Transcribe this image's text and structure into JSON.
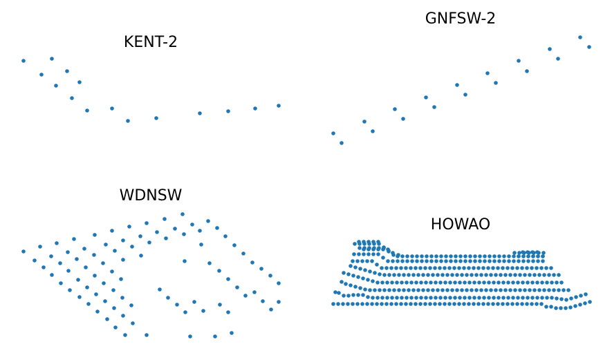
{
  "chart_data": [
    {
      "type": "scatter",
      "title": "KENT-2",
      "color": "#1f77b4",
      "axes_visible": false,
      "xlim": [
        20,
        420
      ],
      "ylim": [
        190,
        70
      ],
      "x": [
        34,
        75,
        60,
        97,
        81,
        115,
        104,
        126,
        162,
        185,
        226,
        289,
        330,
        369,
        403
      ],
      "y": [
        88,
        85,
        108,
        103,
        124,
        119,
        142,
        160,
        157,
        175,
        171,
        164,
        161,
        157,
        153
      ]
    },
    {
      "type": "scatter",
      "title": "GNFSW-2",
      "color": "#1f77b4",
      "axes_visible": false,
      "xlim": [
        470,
        865
      ],
      "ylim": [
        215,
        45
      ],
      "x": [
        482,
        494,
        527,
        539,
        571,
        583,
        616,
        628,
        661,
        673,
        705,
        717,
        750,
        762,
        795,
        807,
        839,
        852
      ],
      "y": [
        193,
        207,
        176,
        190,
        158,
        172,
        141,
        155,
        123,
        137,
        106,
        120,
        88,
        103,
        71,
        85,
        54,
        68
      ]
    },
    {
      "type": "scatter",
      "title": "WDNSW",
      "color": "#1f77b4",
      "axes_visible": false,
      "xlim": [
        20,
        420
      ],
      "ylim": [
        495,
        300
      ],
      "x": [
        34,
        58,
        82,
        107,
        137,
        162,
        187,
        212,
        238,
        264,
        50,
        74,
        98,
        122,
        153,
        178,
        203,
        227,
        253,
        278,
        301,
        63,
        87,
        111,
        136,
        166,
        191,
        216,
        240,
        266,
        289,
        314,
        75,
        99,
        124,
        149,
        178,
        204,
        267,
        291,
        326,
        88,
        113,
        137,
        162,
        303,
        339,
        101,
        126,
        150,
        175,
        317,
        352,
        115,
        139,
        164,
        330,
        365,
        128,
        152,
        177,
        231,
        343,
        378,
        141,
        165,
        190,
        243,
        355,
        391,
        155,
        178,
        256,
        281,
        318,
        368,
        403,
        167,
        192,
        268,
        294,
        330,
        380,
        181,
        212,
        275,
        311,
        335,
        392,
        403
      ],
      "y": [
        364,
        357,
        352,
        346,
        340,
        334,
        328,
        323,
        317,
        310,
        377,
        371,
        365,
        360,
        354,
        348,
        342,
        336,
        331,
        325,
        320,
        387,
        381,
        375,
        369,
        363,
        357,
        351,
        345,
        339,
        334,
        330,
        398,
        392,
        387,
        381,
        376,
        370,
        378,
        354,
        342,
        410,
        405,
        399,
        393,
        381,
        355,
        420,
        416,
        410,
        404,
        392,
        367,
        430,
        426,
        420,
        404,
        380,
        440,
        436,
        431,
        419,
        416,
        389,
        451,
        446,
        442,
        431,
        428,
        399,
        462,
        457,
        441,
        437,
        441,
        423,
        410,
        474,
        468,
        452,
        450,
        452,
        436,
        485,
        485,
        487,
        487,
        482,
        448,
        437
      ]
    },
    {
      "type": "scatter",
      "title": "HOWAO",
      "color": "#1f77b4",
      "axes_visible": false,
      "xlim": [
        470,
        865
      ],
      "ylim": [
        455,
        345
      ],
      "x": [
        482,
        489,
        496,
        503,
        510,
        517,
        524,
        531,
        538,
        545,
        552,
        559,
        566,
        573,
        580,
        587,
        594,
        601,
        608,
        615,
        622,
        629,
        636,
        643,
        650,
        657,
        664,
        671,
        678,
        685,
        692,
        699,
        706,
        713,
        720,
        727,
        734,
        741,
        748,
        755,
        762,
        769,
        776,
        783,
        790,
        797,
        804,
        811,
        818,
        825,
        832,
        839,
        846,
        853,
        485,
        490,
        497,
        504,
        511,
        518,
        525,
        532,
        539,
        546,
        553,
        560,
        567,
        574,
        581,
        588,
        595,
        602,
        609,
        616,
        623,
        630,
        637,
        644,
        651,
        658,
        665,
        672,
        679,
        686,
        693,
        700,
        707,
        714,
        721,
        728,
        735,
        742,
        749,
        756,
        763,
        770,
        777,
        784,
        791,
        798,
        805,
        812,
        819,
        826,
        833,
        840,
        847,
        494,
        500,
        507,
        514,
        521,
        528,
        535,
        542,
        549,
        556,
        563,
        570,
        577,
        584,
        591,
        598,
        605,
        612,
        619,
        626,
        633,
        640,
        647,
        654,
        661,
        668,
        675,
        682,
        689,
        696,
        703,
        710,
        717,
        724,
        731,
        738,
        745,
        752,
        759,
        766,
        773,
        780,
        787,
        794,
        801,
        808,
        815,
        822,
        497,
        504,
        511,
        518,
        525,
        532,
        539,
        546,
        553,
        560,
        567,
        574,
        581,
        588,
        595,
        602,
        609,
        616,
        623,
        630,
        637,
        644,
        651,
        658,
        665,
        672,
        679,
        686,
        693,
        700,
        707,
        714,
        721,
        728,
        735,
        742,
        749,
        756,
        763,
        770,
        777,
        784,
        791,
        798,
        805,
        812,
        507,
        514,
        521,
        528,
        535,
        542,
        549,
        556,
        563,
        570,
        577,
        584,
        591,
        598,
        605,
        612,
        619,
        626,
        633,
        640,
        647,
        654,
        661,
        668,
        675,
        682,
        689,
        696,
        703,
        710,
        717,
        724,
        731,
        738,
        745,
        752,
        759,
        766,
        773,
        780,
        787,
        794,
        801,
        808,
        510,
        517,
        524,
        531,
        538,
        545,
        552,
        559,
        566,
        573,
        580,
        587,
        594,
        601,
        608,
        615,
        622,
        629,
        636,
        643,
        650,
        657,
        664,
        671,
        678,
        685,
        692,
        699,
        706,
        713,
        720,
        727,
        734,
        741,
        748,
        755,
        762,
        769,
        776,
        783,
        790,
        797,
        512,
        519,
        526,
        533,
        540,
        547,
        554,
        561,
        568,
        575,
        582,
        589,
        596,
        603,
        610,
        617,
        624,
        631,
        638,
        645,
        652,
        659,
        666,
        673,
        680,
        687,
        694,
        701,
        708,
        715,
        722,
        729,
        736,
        743,
        750,
        757,
        764,
        771,
        778,
        785,
        526,
        533,
        540,
        547,
        554,
        561,
        568,
        575,
        582,
        589,
        596,
        603,
        610,
        617,
        624,
        631,
        638,
        645,
        652,
        659,
        666,
        673,
        680,
        687,
        694,
        701,
        708,
        715,
        722,
        729,
        736,
        743,
        750,
        757,
        764,
        771,
        778,
        785,
        520,
        527,
        534,
        541,
        548,
        555,
        562,
        569,
        576,
        744,
        751,
        758,
        765,
        772,
        779,
        786,
        513,
        520,
        527,
        534,
        541,
        548,
        555,
        562,
        750,
        757,
        764,
        771,
        778,
        785,
        519,
        526,
        533,
        540,
        547,
        756,
        763,
        770,
        777
      ],
      "y": [
        440,
        440,
        440,
        440,
        440,
        440,
        440,
        440,
        440,
        440,
        440,
        440,
        440,
        440,
        440,
        440,
        440,
        440,
        440,
        440,
        440,
        440,
        440,
        440,
        440,
        440,
        440,
        440,
        440,
        440,
        440,
        440,
        440,
        440,
        440,
        440,
        440,
        440,
        440,
        440,
        440,
        440,
        440,
        440,
        444,
        444,
        446,
        446,
        446,
        445,
        443,
        441,
        439,
        437,
        423,
        424,
        428,
        428,
        427,
        427,
        427,
        430,
        431,
        431,
        431,
        431,
        431,
        431,
        431,
        431,
        431,
        431,
        431,
        431,
        431,
        431,
        431,
        431,
        431,
        431,
        431,
        431,
        431,
        431,
        431,
        431,
        431,
        431,
        431,
        431,
        431,
        431,
        431,
        431,
        431,
        431,
        431,
        431,
        431,
        431,
        432,
        433,
        434,
        432,
        430,
        428,
        426,
        408,
        411,
        413,
        415,
        417,
        419,
        420,
        420,
        420,
        420,
        420,
        420,
        420,
        420,
        420,
        420,
        420,
        420,
        420,
        420,
        420,
        420,
        420,
        420,
        420,
        420,
        420,
        420,
        420,
        420,
        420,
        420,
        420,
        420,
        420,
        420,
        420,
        420,
        420,
        420,
        420,
        420,
        420,
        420,
        420,
        420,
        420,
        420,
        395,
        397,
        399,
        401,
        403,
        405,
        407,
        409,
        409,
        409,
        409,
        409,
        409,
        409,
        409,
        409,
        409,
        409,
        409,
        409,
        409,
        409,
        409,
        409,
        409,
        409,
        409,
        409,
        409,
        409,
        409,
        409,
        409,
        409,
        409,
        409,
        409,
        409,
        409,
        409,
        409,
        409,
        409,
        409,
        409,
        409,
        385,
        387,
        389,
        391,
        393,
        395,
        397,
        398,
        398,
        398,
        398,
        398,
        398,
        398,
        398,
        398,
        398,
        398,
        398,
        398,
        398,
        398,
        398,
        398,
        398,
        398,
        398,
        398,
        398,
        398,
        398,
        398,
        398,
        398,
        398,
        398,
        398,
        398,
        398,
        398,
        398,
        398,
        398,
        398,
        378,
        378,
        378,
        378,
        378,
        383,
        388,
        388,
        388,
        388,
        388,
        388,
        388,
        388,
        388,
        388,
        388,
        388,
        388,
        388,
        388,
        388,
        388,
        388,
        388,
        388,
        388,
        388,
        388,
        388,
        388,
        388,
        388,
        388,
        388,
        388,
        388,
        388,
        388,
        388,
        388,
        388,
        368,
        368,
        368,
        368,
        368,
        368,
        373,
        378,
        378,
        378,
        378,
        378,
        378,
        378,
        378,
        378,
        378,
        378,
        378,
        378,
        378,
        378,
        378,
        378,
        378,
        378,
        378,
        378,
        378,
        378,
        378,
        378,
        378,
        378,
        378,
        378,
        378,
        378,
        378,
        378,
        361,
        361,
        361,
        361,
        361,
        361,
        366,
        371,
        371,
        371,
        371,
        371,
        371,
        371,
        371,
        371,
        371,
        371,
        371,
        371,
        371,
        371,
        371,
        371,
        371,
        371,
        371,
        371,
        371,
        371,
        371,
        371,
        371,
        371,
        371,
        371,
        371,
        371,
        359,
        359,
        359,
        359,
        359,
        359,
        364,
        369,
        369,
        366,
        366,
        366,
        366,
        366,
        366,
        366,
        353,
        353,
        353,
        353,
        353,
        353,
        358,
        363,
        371,
        371,
        371,
        371,
        371,
        371,
        350,
        350,
        350,
        350,
        350,
        365,
        365,
        365,
        365
      ]
    }
  ]
}
